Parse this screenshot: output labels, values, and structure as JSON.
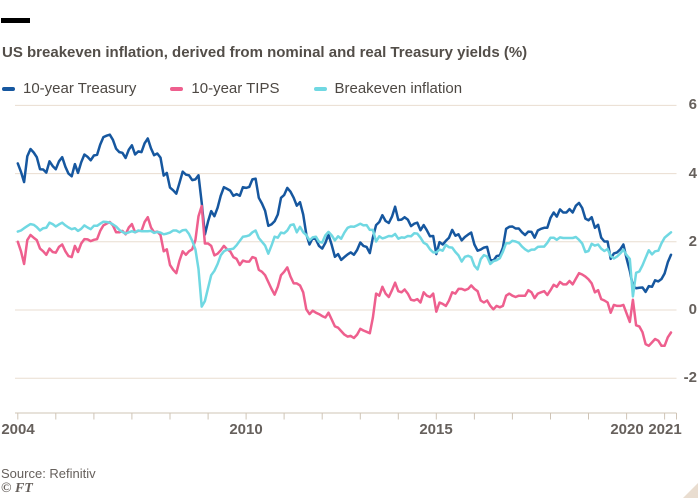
{
  "title": "US breakeven inflation, derived from nominal and real Treasury yields (%)",
  "source": "Source: Refinitiv",
  "credit": "© FT",
  "colors": {
    "background": "#ffffff",
    "top_bar": "#000000",
    "title": "#534e49",
    "text_dark": "#4d4843",
    "axis_text": "#66605c",
    "grid": "#e9ddd0",
    "axis": "#cfc4b6",
    "corner": "#e9ddd0"
  },
  "chart_data": {
    "type": "line",
    "title": "US breakeven inflation, derived from nominal and real Treasury yields (%)",
    "xlabel": "",
    "ylabel": "%",
    "grid": "horizontal",
    "legend_position": "top",
    "x_start": 2004,
    "points_per_year": 12,
    "x_end": 2021.17,
    "ylim": [
      -3.0,
      6.2
    ],
    "y_ticks": [
      6,
      4,
      2,
      0,
      -2
    ],
    "x_tick_years": [
      2004,
      2005,
      2006,
      2007,
      2008,
      2009,
      2010,
      2011,
      2012,
      2013,
      2014,
      2015,
      2016,
      2017,
      2018,
      2019,
      2020,
      2021
    ],
    "x_label_years": [
      2004,
      2010,
      2015,
      2020,
      2021
    ],
    "series": [
      {
        "id": "treasury",
        "name": "10-year Treasury",
        "color": "#16579f",
        "values": [
          4.3,
          4.05,
          3.75,
          4.51,
          4.72,
          4.62,
          4.48,
          4.13,
          4.12,
          4.03,
          4.36,
          4.22,
          4.13,
          4.36,
          4.48,
          4.2,
          4.0,
          3.92,
          4.28,
          4.02,
          4.33,
          4.56,
          4.49,
          4.39,
          4.53,
          4.55,
          4.85,
          5.07,
          5.11,
          5.14,
          4.99,
          4.73,
          4.63,
          4.61,
          4.46,
          4.7,
          4.83,
          4.56,
          4.65,
          4.63,
          4.89,
          5.03,
          4.74,
          4.54,
          4.59,
          4.47,
          3.94,
          4.02,
          3.59,
          3.51,
          3.41,
          3.73,
          4.06,
          3.97,
          3.95,
          3.81,
          3.83,
          3.95,
          3.15,
          2.21,
          2.6,
          2.9,
          2.75,
          3.0,
          3.35,
          3.6,
          3.55,
          3.5,
          3.35,
          3.4,
          3.35,
          3.6,
          3.58,
          3.61,
          3.83,
          3.85,
          3.29,
          3.12,
          2.91,
          2.47,
          2.51,
          2.6,
          2.8,
          3.29,
          3.37,
          3.58,
          3.47,
          3.29,
          3.06,
          3.16,
          2.8,
          2.22,
          1.92,
          2.11,
          2.07,
          1.88,
          1.8,
          1.97,
          2.21,
          1.91,
          1.56,
          1.64,
          1.47,
          1.55,
          1.63,
          1.69,
          1.62,
          1.76,
          1.98,
          1.88,
          1.85,
          1.67,
          2.13,
          2.49,
          2.58,
          2.78,
          2.61,
          2.55,
          2.74,
          3.03,
          2.64,
          2.65,
          2.72,
          2.65,
          2.46,
          2.53,
          2.56,
          2.34,
          2.49,
          2.34,
          2.16,
          2.17,
          1.64,
          1.99,
          1.92,
          2.03,
          2.12,
          2.35,
          2.18,
          2.22,
          2.04,
          2.14,
          2.21,
          2.27,
          1.92,
          1.74,
          1.77,
          1.83,
          1.85,
          1.47,
          1.45,
          1.58,
          1.6,
          1.83,
          2.38,
          2.44,
          2.45,
          2.39,
          2.39,
          2.28,
          2.2,
          2.3,
          2.29,
          2.12,
          2.33,
          2.38,
          2.41,
          2.41,
          2.7,
          2.86,
          2.74,
          2.95,
          2.86,
          2.86,
          2.96,
          2.86,
          3.06,
          3.14,
          2.99,
          2.68,
          2.63,
          2.72,
          2.41,
          2.5,
          2.12,
          2.01,
          2.01,
          1.5,
          1.66,
          1.69,
          1.78,
          1.92,
          1.51,
          1.15,
          0.7,
          0.64,
          0.65,
          0.66,
          0.53,
          0.7,
          0.68,
          0.87,
          0.84,
          0.91,
          1.07,
          1.4,
          1.62
        ]
      },
      {
        "id": "tips",
        "name": "10-year TIPS",
        "color": "#ee5f8e",
        "values": [
          2.0,
          1.72,
          1.35,
          2.05,
          2.2,
          2.12,
          2.05,
          1.8,
          1.72,
          1.62,
          1.8,
          1.7,
          1.68,
          1.85,
          1.92,
          1.72,
          1.58,
          1.55,
          1.88,
          1.7,
          1.95,
          2.08,
          2.07,
          2.02,
          2.06,
          2.08,
          2.32,
          2.48,
          2.53,
          2.58,
          2.48,
          2.28,
          2.28,
          2.32,
          2.22,
          2.42,
          2.52,
          2.28,
          2.32,
          2.32,
          2.58,
          2.72,
          2.42,
          2.28,
          2.3,
          2.2,
          1.72,
          1.78,
          1.32,
          1.18,
          1.08,
          1.45,
          1.72,
          1.62,
          1.72,
          1.78,
          2.05,
          2.75,
          3.05,
          1.95,
          1.95,
          1.88,
          1.6,
          1.65,
          1.75,
          1.88,
          1.78,
          1.72,
          1.55,
          1.5,
          1.32,
          1.45,
          1.42,
          1.42,
          1.55,
          1.52,
          1.18,
          1.12,
          1.02,
          0.82,
          0.62,
          0.45,
          0.68,
          1.02,
          1.12,
          1.25,
          0.98,
          0.78,
          0.78,
          0.72,
          0.52,
          0.02,
          -0.12,
          -0.02,
          -0.08,
          -0.12,
          -0.18,
          -0.22,
          -0.08,
          -0.28,
          -0.48,
          -0.52,
          -0.62,
          -0.72,
          -0.78,
          -0.76,
          -0.82,
          -0.72,
          -0.55,
          -0.6,
          -0.64,
          -0.68,
          -0.22,
          0.48,
          0.42,
          0.68,
          0.48,
          0.38,
          0.58,
          0.8,
          0.55,
          0.52,
          0.6,
          0.48,
          0.3,
          0.28,
          0.32,
          0.22,
          0.52,
          0.42,
          0.38,
          0.48,
          -0.05,
          0.22,
          0.18,
          0.12,
          0.28,
          0.52,
          0.48,
          0.62,
          0.62,
          0.58,
          0.62,
          0.72,
          0.62,
          0.55,
          0.28,
          0.22,
          0.28,
          0.12,
          0.02,
          0.12,
          0.08,
          0.12,
          0.42,
          0.48,
          0.42,
          0.38,
          0.42,
          0.42,
          0.42,
          0.58,
          0.52,
          0.35,
          0.48,
          0.52,
          0.55,
          0.44,
          0.58,
          0.74,
          0.68,
          0.82,
          0.75,
          0.75,
          0.85,
          0.75,
          0.92,
          1.08,
          1.04,
          0.98,
          0.9,
          0.78,
          0.52,
          0.58,
          0.32,
          0.28,
          0.22,
          -0.08,
          0.15,
          0.12,
          0.12,
          0.15,
          -0.1,
          -0.35,
          0.3,
          -0.45,
          -0.48,
          -0.65,
          -1.0,
          -1.05,
          -0.95,
          -0.85,
          -0.9,
          -1.05,
          -1.05,
          -0.8,
          -0.66
        ]
      },
      {
        "id": "breakeven",
        "name": "Breakeven inflation",
        "color": "#70d8e2",
        "values": [
          2.3,
          2.33,
          2.4,
          2.46,
          2.52,
          2.5,
          2.43,
          2.33,
          2.4,
          2.41,
          2.56,
          2.52,
          2.45,
          2.51,
          2.56,
          2.48,
          2.42,
          2.37,
          2.4,
          2.32,
          2.38,
          2.48,
          2.42,
          2.37,
          2.47,
          2.47,
          2.53,
          2.59,
          2.58,
          2.56,
          2.51,
          2.45,
          2.35,
          2.29,
          2.24,
          2.28,
          2.31,
          2.28,
          2.33,
          2.31,
          2.31,
          2.31,
          2.32,
          2.26,
          2.29,
          2.27,
          2.22,
          2.24,
          2.27,
          2.33,
          2.33,
          2.28,
          2.34,
          2.35,
          2.23,
          2.03,
          1.78,
          1.2,
          0.1,
          0.26,
          0.65,
          1.02,
          1.15,
          1.35,
          1.6,
          1.72,
          1.77,
          1.78,
          1.8,
          1.9,
          2.03,
          2.15,
          2.16,
          2.19,
          2.28,
          2.33,
          2.11,
          2.0,
          1.89,
          1.65,
          1.89,
          2.15,
          2.12,
          2.27,
          2.25,
          2.33,
          2.49,
          2.51,
          2.28,
          2.44,
          2.28,
          2.2,
          2.04,
          2.13,
          2.15,
          2.0,
          1.98,
          2.19,
          2.29,
          2.19,
          2.04,
          2.16,
          2.09,
          2.27,
          2.41,
          2.45,
          2.44,
          2.48,
          2.53,
          2.48,
          2.49,
          2.35,
          2.35,
          2.01,
          2.16,
          2.1,
          2.13,
          2.17,
          2.16,
          2.23,
          2.09,
          2.13,
          2.12,
          2.17,
          2.16,
          2.25,
          2.24,
          2.12,
          1.97,
          1.92,
          1.78,
          1.69,
          1.69,
          1.77,
          1.74,
          1.91,
          1.84,
          1.83,
          1.7,
          1.6,
          1.42,
          1.56,
          1.59,
          1.55,
          1.3,
          1.19,
          1.49,
          1.61,
          1.57,
          1.35,
          1.43,
          1.46,
          1.52,
          1.71,
          1.96,
          1.96,
          2.03,
          2.01,
          1.97,
          1.86,
          1.78,
          1.72,
          1.77,
          1.77,
          1.85,
          1.86,
          1.86,
          1.97,
          2.12,
          2.12,
          2.06,
          2.13,
          2.11,
          2.11,
          2.11,
          2.11,
          2.14,
          2.06,
          1.95,
          1.7,
          1.73,
          1.94,
          1.89,
          1.92,
          1.8,
          1.73,
          1.79,
          1.58,
          1.51,
          1.57,
          1.66,
          1.77,
          1.61,
          1.5,
          0.4,
          1.09,
          1.13,
          1.31,
          1.53,
          1.75,
          1.63,
          1.72,
          1.74,
          1.96,
          2.12,
          2.2,
          2.28
        ]
      }
    ]
  }
}
